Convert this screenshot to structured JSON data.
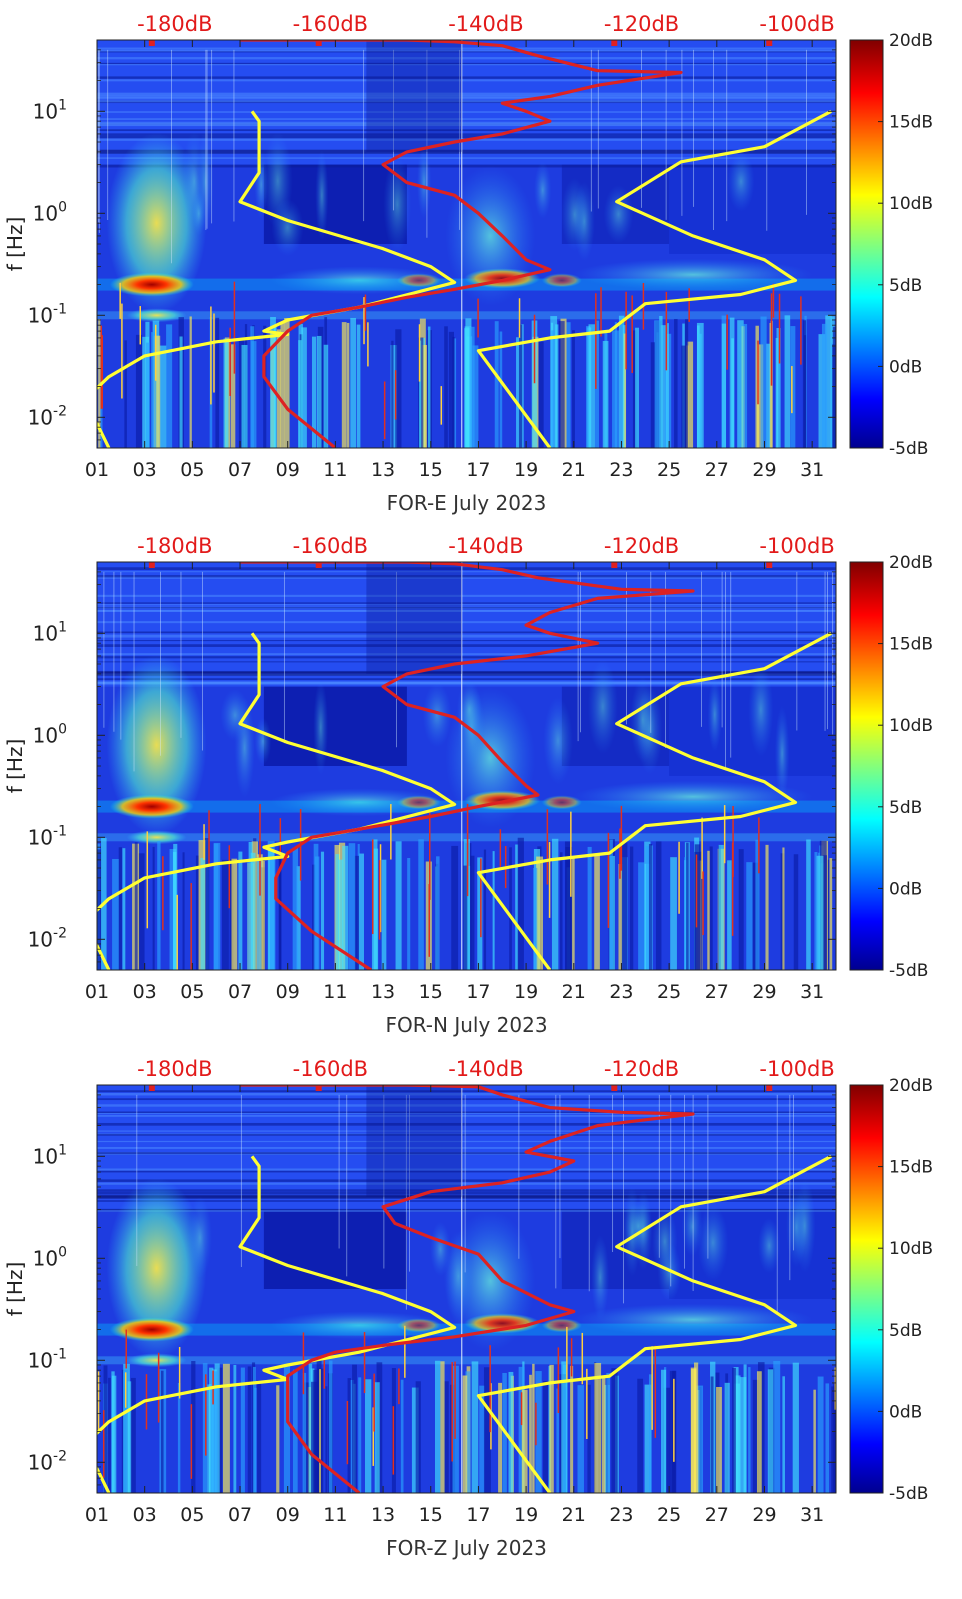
{
  "chart_data": [
    {
      "type": "heatmap",
      "xlabel": "FOR-E July 2023",
      "ylabel": "f [Hz]",
      "x_tick_labels": [
        "01",
        "03",
        "05",
        "07",
        "09",
        "11",
        "13",
        "15",
        "17",
        "19",
        "21",
        "23",
        "25",
        "27",
        "29",
        "31"
      ],
      "y_tick_labels": [
        "10-2",
        "10-1",
        "100",
        "101"
      ],
      "top_axis_labels": [
        "-180dB",
        "-160dB",
        "-140dB",
        "-120dB",
        "-100dB"
      ],
      "colorbar_labels": [
        "20dB",
        "15dB",
        "10dB",
        "5dB",
        "0dB",
        "-5dB"
      ],
      "colorbar_range_db": [
        -5,
        20
      ],
      "xlim_day": [
        1,
        32
      ],
      "ylim_hz": [
        0.005,
        50
      ],
      "yscale": "log",
      "top_axis_range_db": [
        -190,
        -95
      ],
      "hot_band_hz": 0.2,
      "series": [
        {
          "color": "#ffff33",
          "points": [
            [
              7.5,
              10
            ],
            [
              7.8,
              8
            ],
            [
              7.8,
              2.5
            ],
            [
              7,
              1.3
            ],
            [
              9,
              0.85
            ],
            [
              13,
              0.45
            ],
            [
              15,
              0.3
            ],
            [
              16,
              0.21
            ],
            [
              12,
              0.12
            ],
            [
              9,
              0.09
            ],
            [
              8,
              0.07
            ],
            [
              9,
              0.065
            ],
            [
              6,
              0.055
            ],
            [
              3,
              0.04
            ],
            [
              1.5,
              0.025
            ],
            [
              0.5,
              0.015
            ],
            [
              1.5,
              0.005
            ]
          ]
        },
        {
          "color": "#ffff33",
          "points": [
            [
              31.8,
              10
            ],
            [
              29,
              4.5
            ],
            [
              25.5,
              3.2
            ],
            [
              22.8,
              1.3
            ],
            [
              26,
              0.6
            ],
            [
              29,
              0.35
            ],
            [
              30.3,
              0.22
            ],
            [
              28,
              0.16
            ],
            [
              24,
              0.13
            ],
            [
              22.5,
              0.07
            ],
            [
              20,
              0.06
            ],
            [
              17,
              0.045
            ],
            [
              20,
              0.005
            ]
          ]
        },
        {
          "color": "#dd2222",
          "points": [
            [
              7,
              50
            ],
            [
              14,
              50
            ],
            [
              16,
              48
            ],
            [
              18,
              44
            ],
            [
              19.5,
              35
            ],
            [
              22,
              25
            ],
            [
              25.5,
              24
            ],
            [
              22,
              18
            ],
            [
              20,
              14
            ],
            [
              18,
              12
            ],
            [
              19,
              10
            ],
            [
              20,
              8
            ],
            [
              18,
              6
            ],
            [
              16,
              5
            ],
            [
              14,
              4
            ],
            [
              13,
              3
            ],
            [
              14,
              2
            ],
            [
              16,
              1.5
            ],
            [
              17,
              1.0
            ],
            [
              18,
              0.6
            ],
            [
              19,
              0.35
            ],
            [
              20,
              0.28
            ],
            [
              18,
              0.22
            ],
            [
              16,
              0.18
            ],
            [
              14,
              0.15
            ],
            [
              12,
              0.12
            ],
            [
              10,
              0.1
            ],
            [
              9,
              0.07
            ],
            [
              8,
              0.04
            ],
            [
              8,
              0.025
            ],
            [
              9,
              0.012
            ],
            [
              11,
              0.005
            ]
          ]
        }
      ]
    },
    {
      "type": "heatmap",
      "xlabel": "FOR-N July 2023",
      "ylabel": "f [Hz]",
      "x_tick_labels": [
        "01",
        "03",
        "05",
        "07",
        "09",
        "11",
        "13",
        "15",
        "17",
        "19",
        "21",
        "23",
        "25",
        "27",
        "29",
        "31"
      ],
      "y_tick_labels": [
        "10-2",
        "10-1",
        "100",
        "101"
      ],
      "top_axis_labels": [
        "-180dB",
        "-160dB",
        "-140dB",
        "-120dB",
        "-100dB"
      ],
      "colorbar_labels": [
        "20dB",
        "15dB",
        "10dB",
        "5dB",
        "0dB",
        "-5dB"
      ],
      "colorbar_range_db": [
        -5,
        20
      ],
      "xlim_day": [
        1,
        32
      ],
      "ylim_hz": [
        0.005,
        50
      ],
      "yscale": "log",
      "top_axis_range_db": [
        -190,
        -95
      ],
      "hot_band_hz": 0.2,
      "series": [
        {
          "color": "#ffff33",
          "points": [
            [
              7.5,
              10
            ],
            [
              7.8,
              8
            ],
            [
              7.8,
              2.5
            ],
            [
              7,
              1.3
            ],
            [
              9,
              0.85
            ],
            [
              13,
              0.45
            ],
            [
              15,
              0.3
            ],
            [
              16,
              0.21
            ],
            [
              12,
              0.12
            ],
            [
              9,
              0.09
            ],
            [
              8,
              0.08
            ],
            [
              9,
              0.065
            ],
            [
              6,
              0.055
            ],
            [
              3,
              0.04
            ],
            [
              1.5,
              0.025
            ],
            [
              0.5,
              0.015
            ],
            [
              1.5,
              0.005
            ]
          ]
        },
        {
          "color": "#ffff33",
          "points": [
            [
              31.8,
              10
            ],
            [
              29,
              4.5
            ],
            [
              25.5,
              3.2
            ],
            [
              22.8,
              1.3
            ],
            [
              26,
              0.6
            ],
            [
              29,
              0.35
            ],
            [
              30.3,
              0.22
            ],
            [
              28,
              0.16
            ],
            [
              24,
              0.13
            ],
            [
              22.5,
              0.07
            ],
            [
              20,
              0.06
            ],
            [
              17,
              0.045
            ],
            [
              20,
              0.005
            ]
          ]
        },
        {
          "color": "#dd2222",
          "points": [
            [
              7,
              50
            ],
            [
              14,
              50
            ],
            [
              16,
              48
            ],
            [
              18,
              42
            ],
            [
              19.5,
              35
            ],
            [
              23,
              27
            ],
            [
              26,
              26
            ],
            [
              22,
              22
            ],
            [
              20,
              16
            ],
            [
              19,
              12
            ],
            [
              20,
              10
            ],
            [
              22,
              8
            ],
            [
              19,
              6
            ],
            [
              16,
              5
            ],
            [
              14,
              4
            ],
            [
              13,
              3
            ],
            [
              14,
              2
            ],
            [
              16,
              1.5
            ],
            [
              17,
              1.0
            ],
            [
              18,
              0.55
            ],
            [
              19,
              0.32
            ],
            [
              19.5,
              0.26
            ],
            [
              17,
              0.2
            ],
            [
              15,
              0.16
            ],
            [
              12,
              0.12
            ],
            [
              10,
              0.1
            ],
            [
              9,
              0.07
            ],
            [
              8.5,
              0.04
            ],
            [
              8.5,
              0.025
            ],
            [
              10,
              0.012
            ],
            [
              12.5,
              0.005
            ]
          ]
        }
      ]
    },
    {
      "type": "heatmap",
      "xlabel": "FOR-Z July 2023",
      "ylabel": "f [Hz]",
      "x_tick_labels": [
        "01",
        "03",
        "05",
        "07",
        "09",
        "11",
        "13",
        "15",
        "17",
        "19",
        "21",
        "23",
        "25",
        "27",
        "29",
        "31"
      ],
      "y_tick_labels": [
        "10-2",
        "10-1",
        "100",
        "101"
      ],
      "top_axis_labels": [
        "-180dB",
        "-160dB",
        "-140dB",
        "-120dB",
        "-100dB"
      ],
      "colorbar_labels": [
        "20dB",
        "15dB",
        "10dB",
        "5dB",
        "0dB",
        "-5dB"
      ],
      "colorbar_range_db": [
        -5,
        20
      ],
      "xlim_day": [
        1,
        32
      ],
      "ylim_hz": [
        0.005,
        50
      ],
      "yscale": "log",
      "top_axis_range_db": [
        -190,
        -95
      ],
      "hot_band_hz": 0.2,
      "series": [
        {
          "color": "#ffff33",
          "points": [
            [
              7.5,
              10
            ],
            [
              7.8,
              8
            ],
            [
              7.8,
              2.5
            ],
            [
              7,
              1.3
            ],
            [
              9,
              0.85
            ],
            [
              13,
              0.45
            ],
            [
              15,
              0.3
            ],
            [
              16,
              0.21
            ],
            [
              12,
              0.12
            ],
            [
              9,
              0.09
            ],
            [
              8,
              0.08
            ],
            [
              9,
              0.065
            ],
            [
              6,
              0.055
            ],
            [
              3,
              0.04
            ],
            [
              1.5,
              0.025
            ],
            [
              0.5,
              0.015
            ],
            [
              1.5,
              0.005
            ]
          ]
        },
        {
          "color": "#ffff33",
          "points": [
            [
              31.8,
              10
            ],
            [
              29,
              4.5
            ],
            [
              25.5,
              3.2
            ],
            [
              22.8,
              1.3
            ],
            [
              26,
              0.6
            ],
            [
              29,
              0.35
            ],
            [
              30.3,
              0.22
            ],
            [
              28,
              0.16
            ],
            [
              24,
              0.13
            ],
            [
              22.5,
              0.07
            ],
            [
              20,
              0.06
            ],
            [
              17,
              0.045
            ],
            [
              20,
              0.005
            ]
          ]
        },
        {
          "color": "#dd2222",
          "points": [
            [
              7,
              50
            ],
            [
              14,
              50
            ],
            [
              17,
              48
            ],
            [
              18,
              40
            ],
            [
              20,
              30
            ],
            [
              23,
              27
            ],
            [
              26,
              26
            ],
            [
              22,
              20
            ],
            [
              20,
              14
            ],
            [
              19,
              11
            ],
            [
              21,
              9
            ],
            [
              20,
              7
            ],
            [
              18,
              5.5
            ],
            [
              15,
              4.5
            ],
            [
              13,
              3.2
            ],
            [
              13.5,
              2.2
            ],
            [
              15,
              1.6
            ],
            [
              17,
              1.1
            ],
            [
              18,
              0.6
            ],
            [
              20,
              0.35
            ],
            [
              21,
              0.3
            ],
            [
              19,
              0.22
            ],
            [
              16,
              0.17
            ],
            [
              13,
              0.14
            ],
            [
              11,
              0.12
            ],
            [
              10,
              0.1
            ],
            [
              9,
              0.07
            ],
            [
              9,
              0.04
            ],
            [
              9,
              0.025
            ],
            [
              10,
              0.012
            ],
            [
              12,
              0.005
            ]
          ]
        }
      ]
    }
  ]
}
